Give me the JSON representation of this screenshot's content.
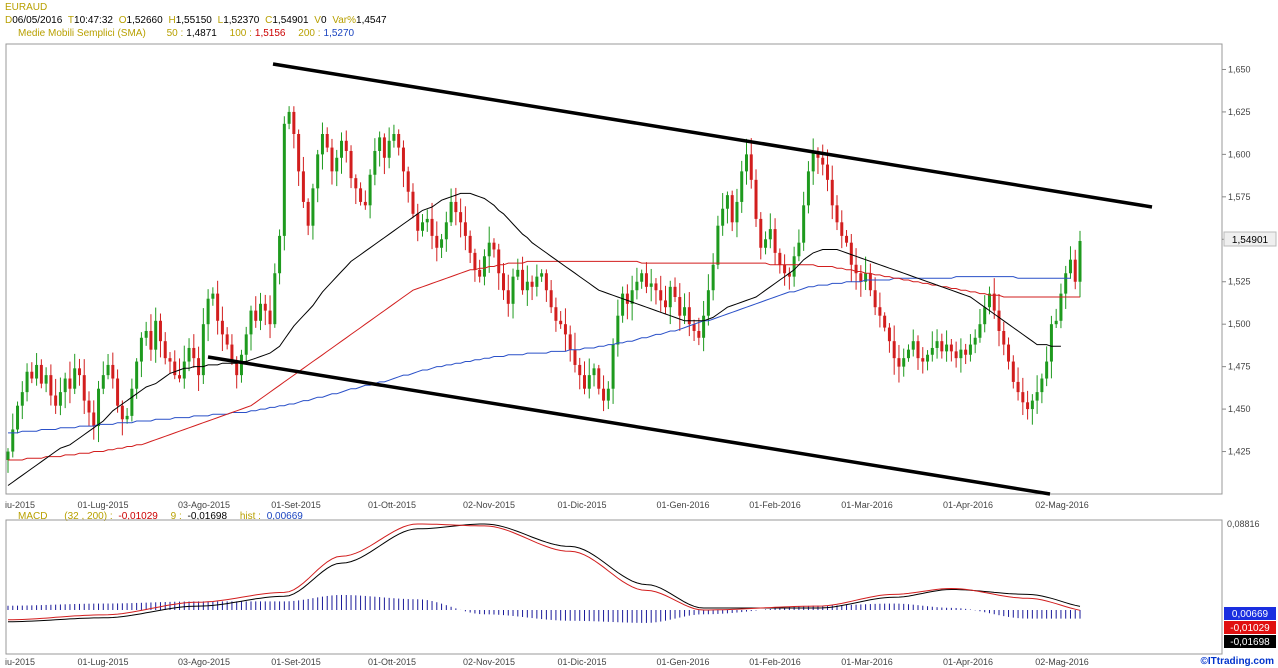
{
  "header": {
    "symbol": "EURAUD",
    "date_prefix": "D",
    "date": "06/05/2016",
    "time_prefix": "T",
    "time": "10:47:32",
    "open_prefix": "O",
    "open": "1,52660",
    "high_prefix": "H",
    "high": "1,55150",
    "low_prefix": "L",
    "low": "1,52370",
    "close_prefix": "C",
    "close": "1,54901",
    "volume_prefix": "V",
    "volume": "0",
    "var_label": "Var%",
    "var_value": "1,4547",
    "sma_label": "Medie Mobili Semplici (SMA)",
    "sma50_label": "50 :",
    "sma50_value": "1,4871",
    "sma100_label": "100 :",
    "sma100_value": "1,5156",
    "sma200_label": "200 :",
    "sma200_value": "1,5270"
  },
  "macd_header": {
    "label": "MACD",
    "params": "(32 , 200) :",
    "macd_value": "-0,01029",
    "signal_label": "9 :",
    "signal_value": "-0,01698",
    "hist_label": "hist :",
    "hist_value": "0,00669"
  },
  "watermark": "©ITtrading.com",
  "colors": {
    "up": "#1e9a1e",
    "down": "#d21e1e",
    "sma50": "#000000",
    "sma100": "#d21e1e",
    "sma200": "#2a50c8",
    "macd": "#d21e1e",
    "signal": "#000000",
    "hist": "#1a1a9a"
  },
  "chart_data": [
    {
      "type": "candlestick",
      "title": "EURAUD",
      "y_ticks": [
        "1,425",
        "1,450",
        "1,475",
        "1,500",
        "1,525",
        "1,550",
        "1,575",
        "1,600",
        "1,625",
        "1,650"
      ],
      "x_ticks": [
        "iu-2015",
        "01-Lug-2015",
        "03-Ago-2015",
        "01-Set-2015",
        "01-Ott-2015",
        "02-Nov-2015",
        "01-Dic-2015",
        "01-Gen-2016",
        "01-Feb-2016",
        "01-Mar-2016",
        "01-Apr-2016",
        "02-Mag-2016"
      ],
      "last_price_label": "1,54901",
      "ylim": [
        1.4,
        1.665
      ],
      "closes": [
        1.425,
        1.438,
        1.452,
        1.46,
        1.472,
        1.468,
        1.476,
        1.465,
        1.47,
        1.458,
        1.452,
        1.46,
        1.468,
        1.462,
        1.474,
        1.47,
        1.455,
        1.448,
        1.44,
        1.462,
        1.47,
        1.476,
        1.468,
        1.452,
        1.444,
        1.446,
        1.462,
        1.478,
        1.492,
        1.496,
        1.485,
        1.502,
        1.49,
        1.48,
        1.478,
        1.47,
        1.468,
        1.478,
        1.486,
        1.48,
        1.47,
        1.5,
        1.515,
        1.518,
        1.502,
        1.494,
        1.488,
        1.478,
        1.47,
        1.482,
        1.494,
        1.508,
        1.502,
        1.512,
        1.508,
        1.5,
        1.53,
        1.552,
        1.618,
        1.625,
        1.612,
        1.59,
        1.572,
        1.558,
        1.58,
        1.6,
        1.612,
        1.604,
        1.59,
        1.598,
        1.608,
        1.602,
        1.586,
        1.58,
        1.572,
        1.57,
        1.588,
        1.602,
        1.61,
        1.598,
        1.608,
        1.612,
        1.604,
        1.59,
        1.578,
        1.565,
        1.555,
        1.56,
        1.562,
        1.552,
        1.545,
        1.55,
        1.56,
        1.572,
        1.566,
        1.56,
        1.552,
        1.542,
        1.532,
        1.528,
        1.54,
        1.548,
        1.544,
        1.53,
        1.52,
        1.512,
        1.528,
        1.532,
        1.52,
        1.525,
        1.522,
        1.528,
        1.53,
        1.52,
        1.51,
        1.502,
        1.5,
        1.494,
        1.485,
        1.476,
        1.47,
        1.462,
        1.47,
        1.474,
        1.462,
        1.455,
        1.462,
        1.488,
        1.505,
        1.518,
        1.512,
        1.52,
        1.525,
        1.53,
        1.522,
        1.524,
        1.52,
        1.514,
        1.51,
        1.522,
        1.516,
        1.505,
        1.51,
        1.5,
        1.496,
        1.492,
        1.505,
        1.52,
        1.535,
        1.558,
        1.568,
        1.576,
        1.56,
        1.572,
        1.59,
        1.6,
        1.585,
        1.562,
        1.545,
        1.55,
        1.556,
        1.542,
        1.535,
        1.53,
        1.528,
        1.54,
        1.548,
        1.57,
        1.59,
        1.602,
        1.598,
        1.594,
        1.585,
        1.57,
        1.56,
        1.552,
        1.548,
        1.535,
        1.53,
        1.525,
        1.53,
        1.52,
        1.51,
        1.505,
        1.498,
        1.49,
        1.48,
        1.475,
        1.48,
        1.485,
        1.49,
        1.48,
        1.478,
        1.482,
        1.486,
        1.49,
        1.484,
        1.488,
        1.484,
        1.48,
        1.485,
        1.482,
        1.488,
        1.492,
        1.5,
        1.51,
        1.518,
        1.508,
        1.496,
        1.488,
        1.478,
        1.466,
        1.46,
        1.454,
        1.45,
        1.455,
        1.46,
        1.468,
        1.478,
        1.5,
        1.502,
        1.518,
        1.53,
        1.538,
        1.525,
        1.549
      ],
      "sma50": [
        1.405,
        1.407,
        1.409,
        1.411,
        1.413,
        1.415,
        1.417,
        1.419,
        1.421,
        1.423,
        1.425,
        1.427,
        1.428,
        1.429,
        1.431,
        1.433,
        1.435,
        1.437,
        1.439,
        1.441,
        1.443,
        1.446,
        1.449,
        1.451,
        1.453,
        1.455,
        1.457,
        1.459,
        1.461,
        1.463,
        1.464,
        1.465,
        1.467,
        1.469,
        1.471,
        1.472,
        1.473,
        1.474,
        1.474,
        1.475,
        1.475,
        1.475,
        1.476,
        1.476,
        1.476,
        1.477,
        1.477,
        1.477,
        1.477,
        1.478,
        1.478,
        1.479,
        1.48,
        1.481,
        1.482,
        1.483,
        1.485,
        1.487,
        1.491,
        1.495,
        1.499,
        1.502,
        1.505,
        1.508,
        1.511,
        1.515,
        1.519,
        1.522,
        1.525,
        1.528,
        1.531,
        1.534,
        1.537,
        1.539,
        1.541,
        1.543,
        1.545,
        1.547,
        1.549,
        1.551,
        1.553,
        1.555,
        1.557,
        1.559,
        1.561,
        1.563,
        1.565,
        1.567,
        1.568,
        1.569,
        1.571,
        1.573,
        1.574,
        1.575,
        1.576,
        1.577,
        1.577,
        1.577,
        1.576,
        1.575,
        1.574,
        1.572,
        1.57,
        1.567,
        1.565,
        1.562,
        1.559,
        1.556,
        1.553,
        1.551,
        1.548,
        1.546,
        1.544,
        1.542,
        1.54,
        1.538,
        1.536,
        1.534,
        1.532,
        1.53,
        1.528,
        1.526,
        1.524,
        1.522,
        1.52,
        1.519,
        1.518,
        1.517,
        1.516,
        1.515,
        1.514,
        1.513,
        1.512,
        1.511,
        1.51,
        1.509,
        1.508,
        1.507,
        1.506,
        1.505,
        1.504,
        1.503,
        1.502,
        1.502,
        1.502,
        1.502,
        1.502,
        1.503,
        1.504,
        1.506,
        1.508,
        1.51,
        1.511,
        1.512,
        1.513,
        1.514,
        1.515,
        1.516,
        1.518,
        1.52,
        1.522,
        1.524,
        1.526,
        1.528,
        1.53,
        1.532,
        1.535,
        1.538,
        1.54,
        1.542,
        1.543,
        1.544,
        1.544,
        1.544,
        1.544,
        1.543,
        1.542,
        1.541,
        1.54,
        1.539,
        1.538,
        1.537,
        1.536,
        1.535,
        1.534,
        1.533,
        1.532,
        1.531,
        1.53,
        1.529,
        1.528,
        1.527,
        1.526,
        1.525,
        1.524,
        1.523,
        1.522,
        1.521,
        1.52,
        1.519,
        1.518,
        1.517,
        1.516,
        1.514,
        1.512,
        1.51,
        1.508,
        1.506,
        1.504,
        1.502,
        1.5,
        1.498,
        1.496,
        1.494,
        1.492,
        1.49,
        1.488,
        1.488,
        1.488,
        1.487,
        1.487,
        1.487
      ],
      "sma100": [
        1.42,
        1.42,
        1.42,
        1.42,
        1.421,
        1.421,
        1.421,
        1.421,
        1.422,
        1.422,
        1.422,
        1.422,
        1.423,
        1.423,
        1.423,
        1.424,
        1.424,
        1.424,
        1.425,
        1.425,
        1.425,
        1.426,
        1.426,
        1.427,
        1.427,
        1.428,
        1.428,
        1.429,
        1.429,
        1.43,
        1.431,
        1.432,
        1.433,
        1.434,
        1.435,
        1.436,
        1.437,
        1.438,
        1.439,
        1.44,
        1.441,
        1.442,
        1.443,
        1.444,
        1.445,
        1.446,
        1.447,
        1.448,
        1.449,
        1.45,
        1.451,
        1.452,
        1.454,
        1.456,
        1.458,
        1.46,
        1.462,
        1.464,
        1.466,
        1.468,
        1.47,
        1.472,
        1.474,
        1.476,
        1.478,
        1.48,
        1.482,
        1.484,
        1.486,
        1.488,
        1.49,
        1.492,
        1.494,
        1.496,
        1.498,
        1.5,
        1.502,
        1.504,
        1.506,
        1.508,
        1.51,
        1.512,
        1.514,
        1.516,
        1.518,
        1.52,
        1.521,
        1.522,
        1.523,
        1.524,
        1.525,
        1.526,
        1.527,
        1.528,
        1.529,
        1.53,
        1.531,
        1.532,
        1.532,
        1.533,
        1.533,
        1.534,
        1.534,
        1.535,
        1.535,
        1.536,
        1.536,
        1.536,
        1.536,
        1.537,
        1.537,
        1.537,
        1.537,
        1.537,
        1.537,
        1.537,
        1.537,
        1.537,
        1.537,
        1.537,
        1.537,
        1.537,
        1.537,
        1.537,
        1.537,
        1.537,
        1.537,
        1.537,
        1.537,
        1.537,
        1.537,
        1.537,
        1.537,
        1.536,
        1.536,
        1.536,
        1.536,
        1.536,
        1.536,
        1.536,
        1.536,
        1.536,
        1.536,
        1.536,
        1.536,
        1.536,
        1.536,
        1.536,
        1.536,
        1.536,
        1.536,
        1.536,
        1.536,
        1.536,
        1.536,
        1.536,
        1.536,
        1.536,
        1.536,
        1.536,
        1.535,
        1.535,
        1.535,
        1.535,
        1.535,
        1.535,
        1.535,
        1.535,
        1.535,
        1.535,
        1.534,
        1.534,
        1.534,
        1.534,
        1.533,
        1.533,
        1.532,
        1.532,
        1.531,
        1.531,
        1.53,
        1.53,
        1.529,
        1.529,
        1.528,
        1.528,
        1.527,
        1.527,
        1.526,
        1.526,
        1.525,
        1.525,
        1.524,
        1.524,
        1.523,
        1.523,
        1.522,
        1.522,
        1.521,
        1.521,
        1.52,
        1.52,
        1.519,
        1.519,
        1.518,
        1.518,
        1.517,
        1.517,
        1.517,
        1.516,
        1.516,
        1.516,
        1.516,
        1.516,
        1.516,
        1.516,
        1.516,
        1.516,
        1.516,
        1.516,
        1.516,
        1.516,
        1.516,
        1.516,
        1.516,
        1.516
      ],
      "sma200": [
        1.436,
        1.436,
        1.436,
        1.437,
        1.437,
        1.437,
        1.437,
        1.438,
        1.438,
        1.438,
        1.438,
        1.439,
        1.439,
        1.439,
        1.439,
        1.44,
        1.44,
        1.44,
        1.44,
        1.441,
        1.441,
        1.441,
        1.441,
        1.442,
        1.442,
        1.442,
        1.442,
        1.443,
        1.443,
        1.443,
        1.443,
        1.444,
        1.444,
        1.444,
        1.444,
        1.445,
        1.445,
        1.445,
        1.445,
        1.446,
        1.446,
        1.446,
        1.446,
        1.447,
        1.447,
        1.447,
        1.447,
        1.448,
        1.448,
        1.448,
        1.448,
        1.449,
        1.449,
        1.45,
        1.45,
        1.451,
        1.451,
        1.452,
        1.452,
        1.453,
        1.453,
        1.454,
        1.455,
        1.455,
        1.456,
        1.457,
        1.457,
        1.458,
        1.459,
        1.459,
        1.46,
        1.461,
        1.462,
        1.462,
        1.463,
        1.464,
        1.464,
        1.465,
        1.466,
        1.466,
        1.467,
        1.468,
        1.469,
        1.47,
        1.47,
        1.471,
        1.472,
        1.473,
        1.473,
        1.474,
        1.475,
        1.475,
        1.476,
        1.476,
        1.477,
        1.477,
        1.478,
        1.478,
        1.479,
        1.479,
        1.48,
        1.48,
        1.481,
        1.481,
        1.481,
        1.482,
        1.482,
        1.482,
        1.482,
        1.483,
        1.483,
        1.483,
        1.483,
        1.483,
        1.484,
        1.484,
        1.484,
        1.484,
        1.485,
        1.485,
        1.485,
        1.486,
        1.486,
        1.486,
        1.487,
        1.487,
        1.488,
        1.488,
        1.489,
        1.489,
        1.49,
        1.49,
        1.491,
        1.492,
        1.492,
        1.493,
        1.494,
        1.494,
        1.495,
        1.496,
        1.496,
        1.497,
        1.498,
        1.499,
        1.5,
        1.501,
        1.502,
        1.502,
        1.503,
        1.504,
        1.505,
        1.506,
        1.507,
        1.508,
        1.509,
        1.51,
        1.511,
        1.512,
        1.513,
        1.514,
        1.515,
        1.516,
        1.517,
        1.518,
        1.519,
        1.519,
        1.52,
        1.521,
        1.522,
        1.522,
        1.523,
        1.523,
        1.523,
        1.524,
        1.524,
        1.524,
        1.525,
        1.525,
        1.525,
        1.525,
        1.526,
        1.526,
        1.526,
        1.526,
        1.526,
        1.526,
        1.527,
        1.527,
        1.527,
        1.527,
        1.527,
        1.527,
        1.527,
        1.527,
        1.527,
        1.527,
        1.527,
        1.527,
        1.527,
        1.528,
        1.528,
        1.528,
        1.528,
        1.528,
        1.528,
        1.528,
        1.528,
        1.528,
        1.528,
        1.528,
        1.528,
        1.528,
        1.527,
        1.527,
        1.527,
        1.527,
        1.527,
        1.527,
        1.527,
        1.527,
        1.527,
        1.527,
        1.527,
        1.527
      ]
    },
    {
      "type": "macd",
      "title": "MACD",
      "params": [
        32,
        200,
        9
      ],
      "y_tick_top": "0,08816",
      "ylim": [
        -0.045,
        0.09
      ],
      "value_boxes": [
        "0,00669",
        "-0,01029",
        "-0,01698"
      ],
      "macd_anchors": [
        [
          0,
          -0.01
        ],
        [
          20,
          -0.005
        ],
        [
          40,
          0.008
        ],
        [
          58,
          0.018
        ],
        [
          70,
          0.055
        ],
        [
          86,
          0.088
        ],
        [
          100,
          0.086
        ],
        [
          118,
          0.06
        ],
        [
          134,
          0.02
        ],
        [
          146,
          0.0
        ],
        [
          170,
          0.004
        ],
        [
          186,
          0.016
        ],
        [
          198,
          0.022
        ],
        [
          214,
          0.012
        ],
        [
          228,
          -0.002
        ],
        [
          240,
          -0.01
        ],
        [
          248,
          -0.016
        ],
        [
          256,
          -0.01
        ]
      ],
      "signal_anchors": [
        [
          0,
          -0.012
        ],
        [
          20,
          -0.008
        ],
        [
          40,
          0.004
        ],
        [
          58,
          0.014
        ],
        [
          70,
          0.048
        ],
        [
          86,
          0.083
        ],
        [
          100,
          0.088
        ],
        [
          118,
          0.065
        ],
        [
          134,
          0.026
        ],
        [
          146,
          0.002
        ],
        [
          170,
          0.002
        ],
        [
          186,
          0.013
        ],
        [
          198,
          0.021
        ],
        [
          214,
          0.016
        ],
        [
          228,
          0.002
        ],
        [
          240,
          -0.008
        ],
        [
          248,
          -0.018
        ],
        [
          256,
          -0.017
        ]
      ]
    }
  ]
}
